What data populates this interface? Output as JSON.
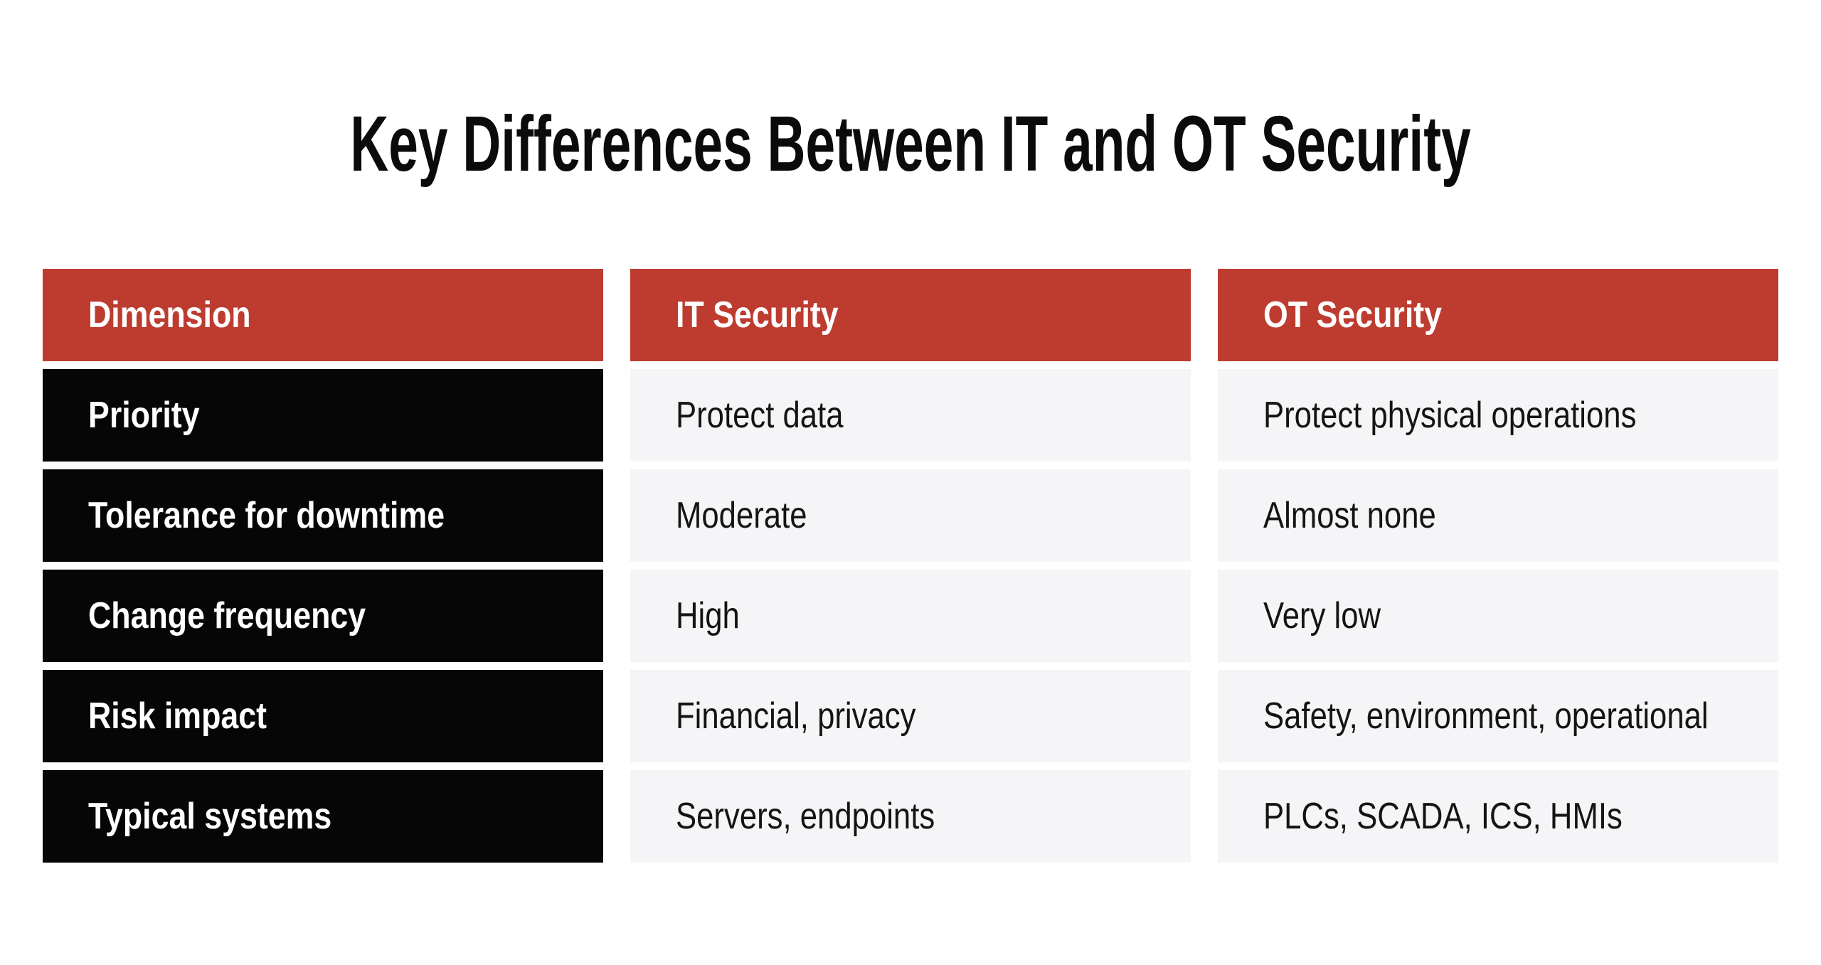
{
  "colors": {
    "background": "#FFFFFF",
    "header_bg": "#BD3C2F",
    "header_text": "#FFFFFF",
    "dimension_col_bg": "#060606",
    "dimension_text": "#FFFFFF",
    "value_cell_bg": "#F5F5F7",
    "value_text": "#141414",
    "title_text": "#0B0B0B"
  },
  "chart_data": {
    "type": "table",
    "title": "Key Differences Between IT and OT Security",
    "columns": [
      "Dimension",
      "IT Security",
      "OT Security"
    ],
    "rows": [
      [
        "Priority",
        "Protect data",
        "Protect physical operations"
      ],
      [
        "Tolerance for downtime",
        "Moderate",
        "Almost none"
      ],
      [
        "Change frequency",
        "High",
        "Very low"
      ],
      [
        "Risk impact",
        "Financial, privacy",
        "Safety, environment, operational"
      ],
      [
        "Typical systems",
        "Servers, endpoints",
        "PLCs, SCADA, ICS, HMIs"
      ]
    ],
    "legend": "none",
    "grid": "off",
    "layout": "three-column comparison table, red header row, black row-label column, light gray value cells"
  }
}
